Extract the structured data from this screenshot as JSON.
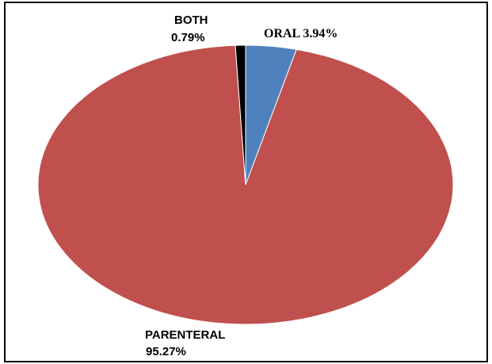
{
  "chart_data": {
    "type": "pie",
    "title": "",
    "slices": [
      {
        "label": "ORAL",
        "value": 3.94,
        "display": "ORAL 3.94%",
        "color": "#4F81BD"
      },
      {
        "label": "PARENTERAL",
        "value": 95.27,
        "display": "95.27%",
        "color": "#C0504D"
      },
      {
        "label": "BOTH",
        "value": 0.79,
        "display": "0.79%",
        "color": "#000000"
      }
    ],
    "start": "12 o'clock",
    "direction": "clockwise",
    "legend": "none"
  },
  "labels": {
    "both_name": "BOTH",
    "both_value": "0.79%",
    "oral": "ORAL 3.94%",
    "parenteral_name": "PARENTERAL",
    "parenteral_value": "95.27%"
  }
}
